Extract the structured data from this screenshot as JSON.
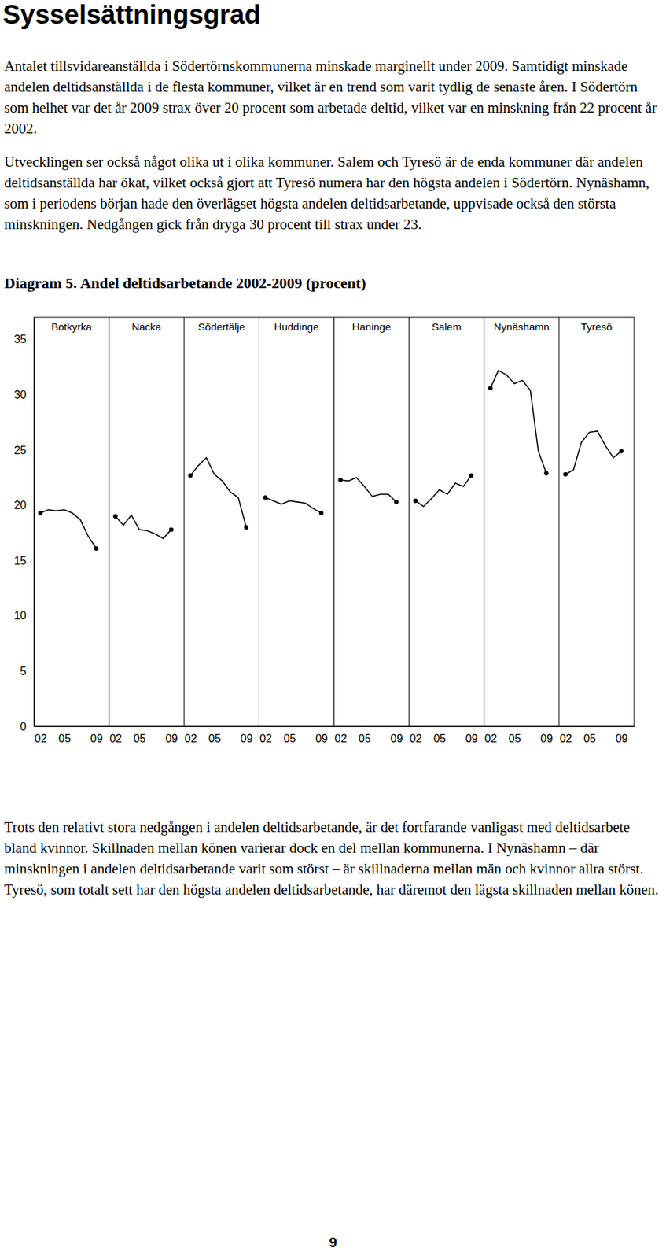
{
  "heading": "Sysselsättningsgrad",
  "paragraphs_before": [
    "Antalet tillsvidareanställda i Södertörnskommunerna minskade marginellt under 2009. Samtidigt minskade andelen deltidsanställda i de flesta kommuner, vilket är en trend som varit tydlig de senaste åren. I Södertörn som helhet var det år 2009 strax över 20 procent som arbetade deltid, vilket var en minskning från 22 procent år 2002.",
    "Utvecklingen ser också något olika ut i olika kommuner. Salem och Tyresö är de enda kommuner där andelen deltidsanställda har ökat, vilket också gjort att Tyresö numera har den högsta andelen i Södertörn. Nynäshamn, som i periodens början hade den överlägset högsta andelen deltidsarbetande, uppvisade också den största minskningen. Nedgången gick från dryga 30 procent till strax under 23."
  ],
  "chart_data": {
    "type": "line",
    "title": "Diagram 5. Andel deltidsarbetande 2002-2009 (procent)",
    "x": [
      2002,
      2003,
      2004,
      2005,
      2006,
      2007,
      2008,
      2009
    ],
    "xlim": [
      2001.2,
      2010.6
    ],
    "xticks": [
      {
        "value": 2002,
        "label": "02"
      },
      {
        "value": 2005,
        "label": "05"
      },
      {
        "value": 2009,
        "label": "09"
      }
    ],
    "ylim": [
      0,
      37
    ],
    "yticks": [
      0,
      5,
      10,
      15,
      20,
      25,
      30,
      35
    ],
    "grid": false,
    "marker": "endpoints",
    "line_style": "solid",
    "color": "#000000",
    "series": [
      {
        "name": "Botkyrka",
        "values": [
          19.3,
          19.6,
          19.5,
          19.6,
          19.3,
          18.7,
          17.2,
          16.1
        ]
      },
      {
        "name": "Nacka",
        "values": [
          19.0,
          18.2,
          19.1,
          17.8,
          17.7,
          17.4,
          17.0,
          17.8
        ]
      },
      {
        "name": "Södertälje",
        "values": [
          22.7,
          23.6,
          24.3,
          22.8,
          22.2,
          21.2,
          20.7,
          18.0
        ]
      },
      {
        "name": "Huddinge",
        "values": [
          20.7,
          20.4,
          20.1,
          20.4,
          20.3,
          20.2,
          19.7,
          19.3
        ]
      },
      {
        "name": "Haninge",
        "values": [
          22.3,
          22.2,
          22.5,
          21.7,
          20.8,
          21.0,
          21.0,
          20.3
        ]
      },
      {
        "name": "Salem",
        "values": [
          20.4,
          19.9,
          20.6,
          21.4,
          21.0,
          22.0,
          21.7,
          22.7
        ]
      },
      {
        "name": "Nynäshamn",
        "values": [
          30.6,
          32.2,
          31.8,
          31.0,
          31.3,
          30.4,
          24.9,
          22.9
        ]
      },
      {
        "name": "Tyresö",
        "values": [
          22.8,
          23.2,
          25.7,
          26.6,
          26.7,
          25.4,
          24.3,
          24.9
        ]
      }
    ]
  },
  "paragraphs_after": [
    "Trots den relativt stora nedgången i andelen deltidsarbetande, är det fortfarande vanligast med deltidsarbete bland kvinnor. Skillnaden mellan könen varierar dock en del mellan kommunerna. I Nynäshamn – där minskningen i andelen deltidsarbetande varit som störst – är skillnaderna mellan män och kvinnor allra störst. Tyresö, som totalt sett har den högsta andelen deltidsarbetande, har däremot den lägsta skillnaden mellan könen."
  ],
  "page_number": "9"
}
